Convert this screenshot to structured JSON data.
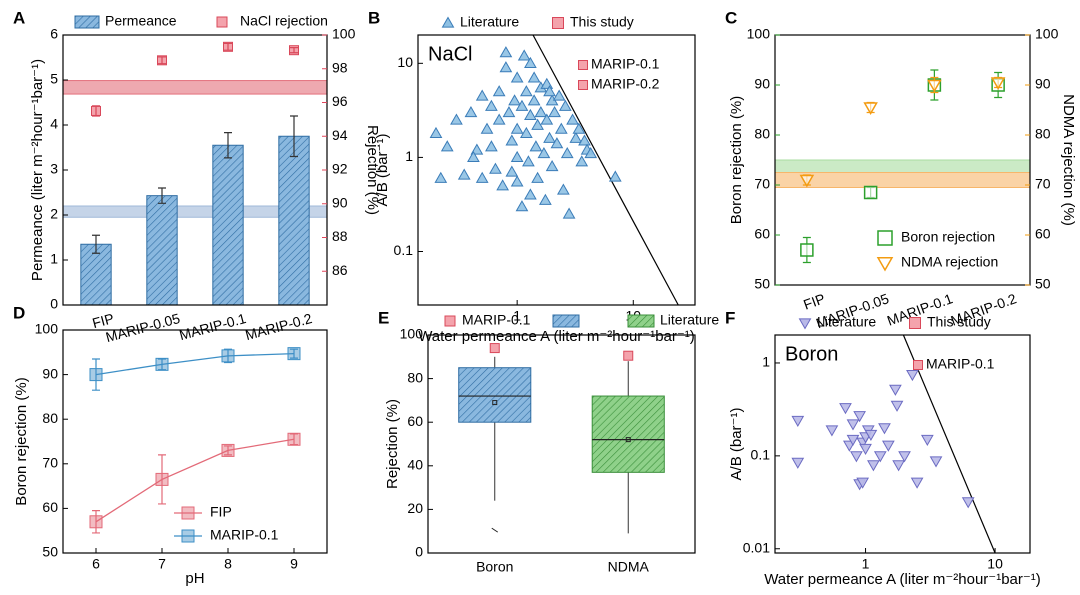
{
  "chart_data": [
    {
      "type": "bar",
      "panel": "A",
      "categories": [
        "FIP",
        "MARIP-0.05",
        "MARIP-0.1",
        "MARIP-0.2"
      ],
      "series": [
        {
          "name": "Permeance",
          "color": "#8ab8df",
          "edgecolor": "#2f6da3",
          "values": [
            1.35,
            2.43,
            3.55,
            3.75
          ],
          "errors": [
            0.2,
            0.17,
            0.28,
            0.45
          ]
        },
        {
          "name": "NaCl rejection",
          "color": "#f4a3ac",
          "edgecolor": "#d9485a",
          "axis": "y2",
          "values": [
            95.5,
            98.5,
            99.3,
            99.1
          ],
          "errors": [
            0.3,
            0.2,
            0.2,
            0.15
          ]
        }
      ],
      "bands": [
        {
          "axis": "y",
          "range": [
            1.95,
            2.2
          ],
          "color": "#9fb8d9"
        },
        {
          "axis": "y2",
          "range": [
            96.5,
            97.3
          ],
          "color": "#e3707c"
        }
      ],
      "ylabel": "Permeance (liter m⁻²hour⁻¹bar⁻¹)",
      "y2label": "Rejection (%)",
      "ylim": [
        0,
        6
      ],
      "yticks": [
        0,
        1,
        2,
        3,
        4,
        5,
        6
      ],
      "y2lim": [
        84,
        100
      ],
      "y2ticks": [
        86,
        88,
        90,
        92,
        94,
        96,
        98,
        100
      ],
      "ycolor": "#000000",
      "y2color": "#e0455a"
    },
    {
      "type": "scatter",
      "panel": "B",
      "annotation": "NaCl",
      "xlabel": "Water permeance A (liter m⁻²hour⁻¹bar⁻¹)",
      "ylabel": "A/B (bar⁻¹)",
      "xlog": true,
      "ylog": true,
      "xlim": [
        0.14,
        34
      ],
      "ylim": [
        0.027,
        20
      ],
      "xticks": [
        1,
        10
      ],
      "yticks": [
        0.1,
        1,
        10
      ],
      "series": [
        {
          "name": "Literature",
          "marker": "triangle-up",
          "color": "#8fc1e3",
          "edgecolor": "#3a7cb8",
          "x": [
            0.2,
            0.22,
            0.3,
            0.35,
            0.4,
            0.45,
            0.5,
            0.5,
            0.55,
            0.6,
            0.6,
            0.65,
            0.7,
            0.7,
            0.75,
            0.8,
            0.8,
            0.85,
            0.9,
            0.9,
            0.95,
            1,
            1,
            1,
            1,
            1.1,
            1.1,
            1.15,
            1.2,
            1.2,
            1.25,
            1.3,
            1.3,
            1.4,
            1.4,
            1.45,
            1.5,
            1.5,
            1.6,
            1.6,
            1.7,
            1.75,
            1.8,
            1.8,
            1.9,
            2,
            2,
            2.1,
            2.2,
            2.3,
            2.4,
            2.5,
            2.6,
            2.7,
            2.8,
            3,
            3.2,
            3.4,
            3.6,
            3.8,
            4,
            4.3,
            7,
            1.9,
            1.3,
            0.42,
            0.25
          ],
          "y": [
            1.8,
            0.6,
            2.5,
            0.65,
            3,
            1.2,
            4.5,
            0.6,
            2,
            3.5,
            1.3,
            0.75,
            5,
            2.5,
            0.5,
            13,
            9,
            3,
            1.5,
            0.7,
            4,
            7,
            2,
            1,
            0.55,
            3.5,
            0.3,
            12,
            5,
            1.8,
            0.9,
            2.8,
            0.4,
            7,
            4,
            1.3,
            2.2,
            0.6,
            5.5,
            3,
            1.1,
            0.35,
            6,
            2.5,
            1.6,
            4,
            0.8,
            3,
            1.4,
            4.5,
            2,
            0.45,
            3.5,
            1.1,
            0.25,
            2.5,
            1.6,
            2,
            0.9,
            1.5,
            1.2,
            1.1,
            0.62,
            5,
            10,
            1,
            1.3
          ]
        },
        {
          "name": "This study",
          "marker": "square",
          "color": "#f4a3ac",
          "edgecolor": "#d9485a",
          "x": [],
          "y": []
        }
      ],
      "inset_labels": [
        "MARIP-0.1",
        "MARIP-0.2"
      ],
      "boundary": {
        "x": [
          1.37,
          24.4
        ],
        "y": [
          20,
          0.027
        ]
      }
    },
    {
      "type": "point",
      "panel": "C",
      "categories": [
        "FIP",
        "MARIP-0.05",
        "MARIP-0.1",
        "MARIP-0.2"
      ],
      "series": [
        {
          "name": "Boron  rejection",
          "marker": "square",
          "color": "#2ca02c",
          "values": [
            57,
            68.5,
            90,
            90
          ],
          "errors": [
            2.5,
            1,
            3,
            2.5
          ]
        },
        {
          "name": "NDMA rejection",
          "marker": "triangle-down",
          "color": "#f39c12",
          "axis": "y2",
          "values": [
            71,
            85.5,
            90,
            90.5
          ],
          "errors": [
            1,
            1,
            1.5,
            1
          ]
        }
      ],
      "bands": [
        {
          "axis": "y",
          "range": [
            72.5,
            75
          ],
          "color": "#a8dca0"
        },
        {
          "axis": "y2",
          "range": [
            69.5,
            72.5
          ],
          "color": "#f7b66a"
        }
      ],
      "ylabel": "Boron rejection (%)",
      "y2label": "NDMA rejection (%)",
      "ylim": [
        50,
        100
      ],
      "yticks": [
        50,
        60,
        70,
        80,
        90,
        100
      ],
      "y2lim": [
        50,
        100
      ],
      "y2ticks": [
        50,
        60,
        70,
        80,
        90,
        100
      ],
      "ycolor": "#2ca02c",
      "y2color": "#f39c12"
    },
    {
      "type": "line",
      "panel": "D",
      "xlabel": "pH",
      "ylabel": "Boron rejection (%)",
      "x": [
        6,
        7,
        8,
        9
      ],
      "xlim": [
        5.5,
        9.5
      ],
      "xticks": [
        6,
        7,
        8,
        9
      ],
      "ylim": [
        50,
        100
      ],
      "yticks": [
        50,
        60,
        70,
        80,
        90,
        100
      ],
      "series": [
        {
          "name": "FIP",
          "color": "#e36a78",
          "values": [
            57,
            66.5,
            73,
            75.5
          ],
          "errors": [
            2.5,
            5.5,
            1,
            1.2
          ]
        },
        {
          "name": "MARIP-0.1",
          "color": "#3d8fc6",
          "values": [
            90,
            92.3,
            94.2,
            94.7
          ],
          "errors": [
            3.5,
            1.2,
            1.5,
            1
          ]
        }
      ]
    },
    {
      "type": "box",
      "panel": "E",
      "ylabel": "Rejection (%)",
      "categories": [
        "Boron",
        "NDMA"
      ],
      "box_name": "Literature",
      "boxes": [
        {
          "whislo": 24,
          "q1": 60,
          "med": 72,
          "q3": 85,
          "whishi": 90,
          "mean": 69,
          "outliers": [
            10.5
          ],
          "color": "#8ab8df",
          "edgecolor": "#2f6da3"
        },
        {
          "whislo": 9,
          "q1": 37,
          "med": 52,
          "q3": 72,
          "whishi": 88,
          "mean": 52,
          "outliers": [],
          "color": "#8fd18a",
          "edgecolor": "#3a8f3a"
        }
      ],
      "series": [
        {
          "name": "MARIP-0.1",
          "color": "#f4a3ac",
          "edgecolor": "#d9485a",
          "values": [
            94,
            90.5
          ]
        }
      ],
      "ylim": [
        0,
        100
      ],
      "yticks": [
        0,
        20,
        40,
        60,
        80,
        100
      ]
    },
    {
      "type": "scatter",
      "panel": "F",
      "annotation": "Boron",
      "xlabel": "Water permeance A (liter m⁻²hour⁻¹bar⁻¹)",
      "ylabel": "A/B (bar⁻¹)",
      "xlog": true,
      "ylog": true,
      "xlim": [
        0.2,
        18.6
      ],
      "ylim": [
        0.009,
        2
      ],
      "xticks": [
        1,
        10
      ],
      "yticks": [
        0.01,
        0.1,
        1
      ],
      "series": [
        {
          "name": "Literature",
          "marker": "triangle-down",
          "color": "#b9b9e8",
          "edgecolor": "#6b6bc2",
          "x": [
            0.3,
            0.3,
            0.55,
            0.7,
            0.75,
            0.8,
            0.8,
            0.85,
            0.9,
            0.9,
            0.95,
            0.95,
            1,
            1,
            1.05,
            1.1,
            1.15,
            1.3,
            1.4,
            1.5,
            1.7,
            1.75,
            1.8,
            2,
            2.3,
            2.5,
            3,
            3.5,
            6.2
          ],
          "y": [
            0.24,
            0.085,
            0.19,
            0.33,
            0.13,
            0.22,
            0.15,
            0.1,
            0.05,
            0.27,
            0.14,
            0.052,
            0.16,
            0.12,
            0.19,
            0.17,
            0.08,
            0.1,
            0.2,
            0.13,
            0.52,
            0.35,
            0.08,
            0.1,
            0.75,
            0.052,
            0.15,
            0.088,
            0.032
          ]
        },
        {
          "name": "This study",
          "marker": "square",
          "color": "#f4a3ac",
          "edgecolor": "#d9485a",
          "x": [],
          "y": []
        }
      ],
      "inset_labels": [
        "MARIP-0.1"
      ],
      "boundary": {
        "x": [
          1.96,
          10
        ],
        "y": [
          2,
          0.009
        ]
      }
    }
  ]
}
